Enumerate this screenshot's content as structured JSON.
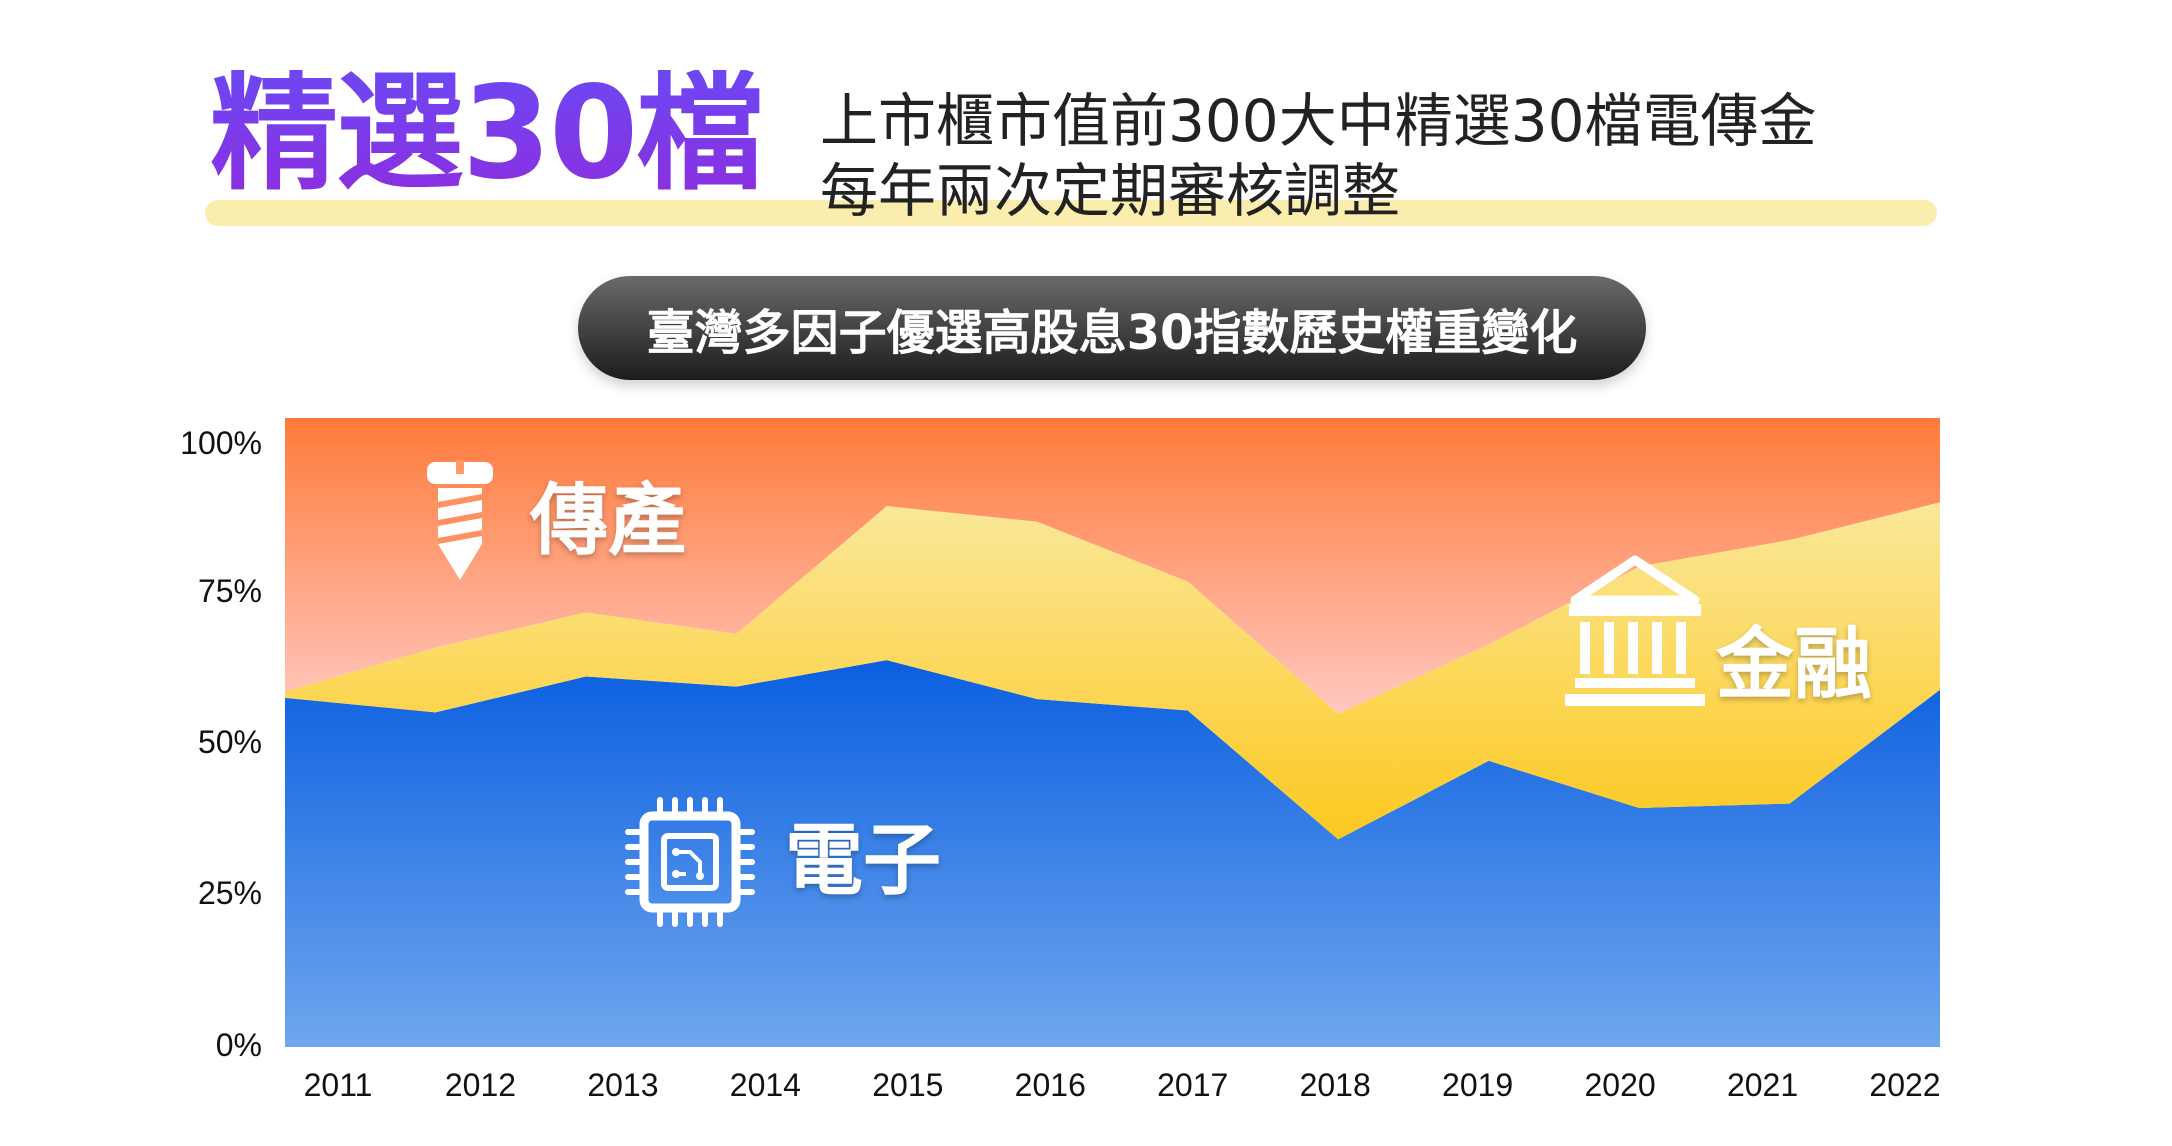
{
  "header": {
    "big_title": "精選30檔",
    "subtitle_line1": "上市櫃市值前300大中精選30檔電傳金",
    "subtitle_line2": "每年兩次定期審核調整"
  },
  "chart_data": {
    "type": "area",
    "title": "臺灣多因子優選高股息30指數歷史權重變化",
    "categories": [
      "2011",
      "2012",
      "2013",
      "2014",
      "2015",
      "2016",
      "2017",
      "2018",
      "2019",
      "2020",
      "2021",
      "2022"
    ],
    "ylim": [
      0,
      100
    ],
    "yticks": [
      "0%",
      "25%",
      "50%",
      "75%",
      "100%"
    ],
    "stacked": true,
    "series": [
      {
        "name": "電子",
        "color": "#1a6be0",
        "values": [
          55.5,
          53.2,
          58.9,
          57.3,
          61.5,
          55.3,
          53.5,
          33.0,
          45.5,
          38.0,
          38.7,
          56.8
        ]
      },
      {
        "name": "金融",
        "color": "#fdd835",
        "values": [
          1.0,
          10.3,
          10.2,
          8.4,
          24.5,
          28.2,
          20.5,
          20.0,
          18.5,
          38.4,
          41.9,
          29.8
        ]
      },
      {
        "name": "傳產",
        "color": "#ff7b3f",
        "values": [
          43.5,
          36.5,
          30.9,
          34.3,
          14.0,
          16.5,
          26.0,
          47.0,
          36.0,
          23.6,
          19.4,
          13.4
        ]
      }
    ],
    "labels": {
      "electronics": "電子",
      "finance": "金融",
      "traditional": "傳產"
    },
    "icons": {
      "electronics": "chip-icon",
      "finance": "bank-icon",
      "traditional": "screw-icon"
    }
  }
}
